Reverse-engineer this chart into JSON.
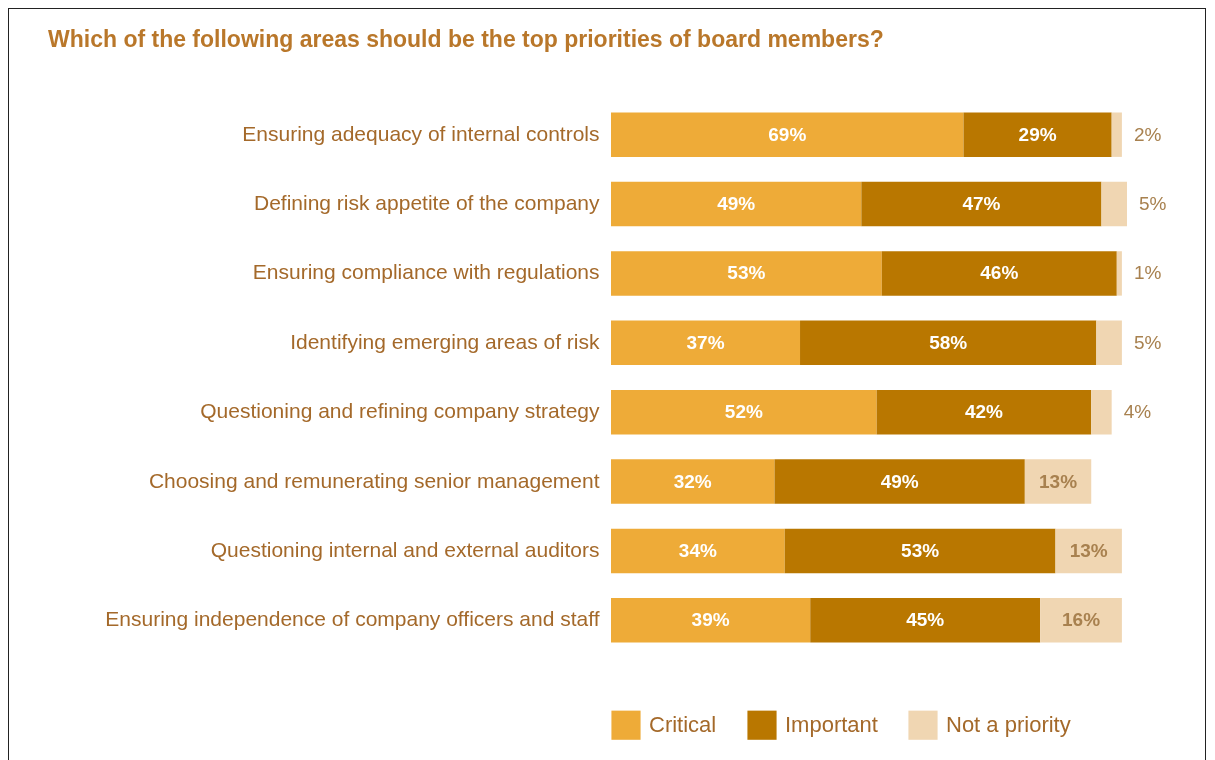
{
  "chart_data": {
    "type": "bar",
    "orientation": "horizontal",
    "stacked": true,
    "title": "Which of the following areas should be the top priorities of board members?",
    "categories": [
      "Ensuring adequacy of internal controls",
      "Defining risk appetite of the company",
      "Ensuring compliance with regulations",
      "Identifying emerging areas of risk",
      "Questioning and refining company strategy",
      "Choosing and remunerating senior management",
      "Questioning internal and external auditors",
      "Ensuring independence of company officers and staff"
    ],
    "series": [
      {
        "name": "Critical",
        "color": "#eeab38",
        "values": [
          69,
          49,
          53,
          37,
          52,
          32,
          34,
          39
        ],
        "value_labels": [
          "69%",
          "49%",
          "53%",
          "37%",
          "52%",
          "32%",
          "34%",
          "39%"
        ]
      },
      {
        "name": "Important",
        "color": "#b97700",
        "values": [
          29,
          47,
          46,
          58,
          42,
          49,
          53,
          45
        ],
        "value_labels": [
          "29%",
          "47%",
          "46%",
          "58%",
          "42%",
          "49%",
          "53%",
          "45%"
        ]
      },
      {
        "name": "Not a priority",
        "color": "#f0d6b2",
        "values": [
          2,
          5,
          1,
          5,
          4,
          13,
          13,
          16
        ],
        "value_labels": [
          "2%",
          "5%",
          "1%",
          "5%",
          "4%",
          "13%",
          "13%",
          "16%"
        ]
      }
    ],
    "legend": "bottom"
  }
}
